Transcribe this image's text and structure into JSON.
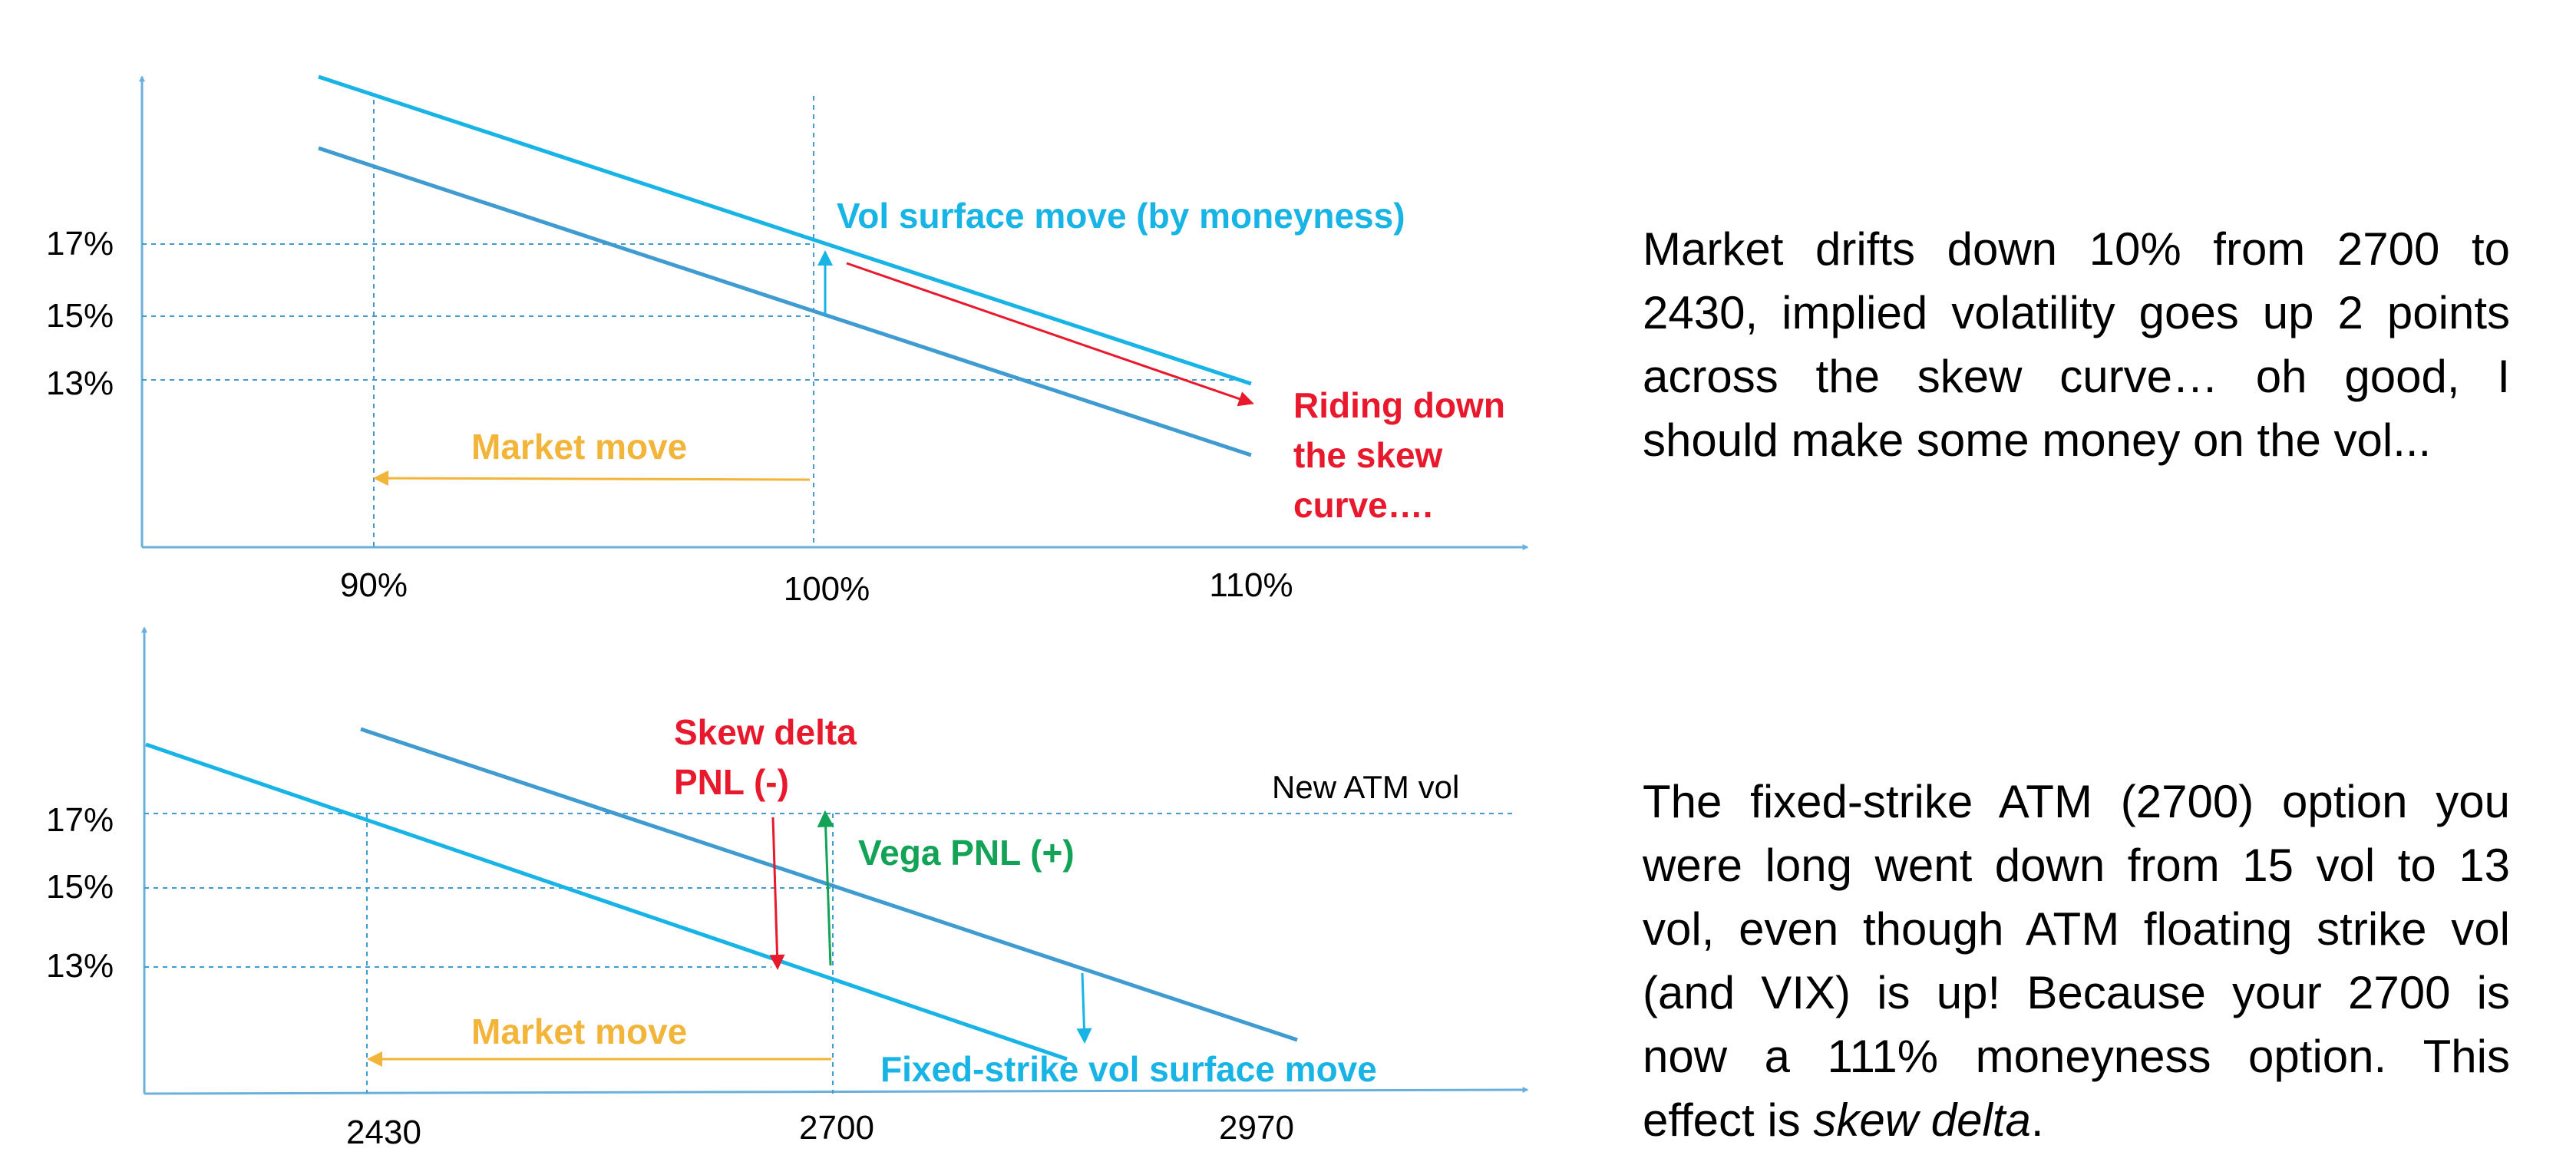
{
  "colors": {
    "axis": "#6ab0dc",
    "upper_line": "#19b4e6",
    "lower_line": "#3f9bd0",
    "grid": "#3f9bd0",
    "market_move": "#f2b53a",
    "red": "#e8192c",
    "green": "#12a356",
    "cyan": "#19b4e6"
  },
  "chart_data": [
    {
      "type": "line",
      "x_tick_labels": [
        "90%",
        "100%",
        "110%"
      ],
      "y_tick_labels": [
        "17%",
        "15%",
        "13%"
      ],
      "annotations": {
        "vol_surface_move": "Vol surface move (by moneyness)",
        "riding_line1": "Riding down",
        "riding_line2": "the skew",
        "riding_line3": "curve….",
        "market_move": "Market move"
      }
    },
    {
      "type": "line",
      "x_tick_labels": [
        "2430",
        "2700",
        "2970"
      ],
      "y_tick_labels": [
        "17%",
        "15%",
        "13%"
      ],
      "annotations": {
        "skew_delta_line1": "Skew delta",
        "skew_delta_line2": "PNL (-)",
        "new_atm_vol": "New ATM vol",
        "vega_pnl": "Vega PNL (+)",
        "market_move": "Market move",
        "fixed_strike_move": "Fixed-strike vol surface move"
      }
    }
  ],
  "text": {
    "para1": "Market drifts down 10% from 2700 to 2430, implied volatility goes up 2 points across the skew curve… oh good, I should make some money on the vol...",
    "para2_main": "The fixed-strike ATM (2700) option you were long went down from 15 vol to 13 vol, even though ATM floating strike vol (and VIX) is up! Because your 2700 is now a 111% moneyness option. This effect is ",
    "para2_italic": "skew delta",
    "para2_end": "."
  }
}
